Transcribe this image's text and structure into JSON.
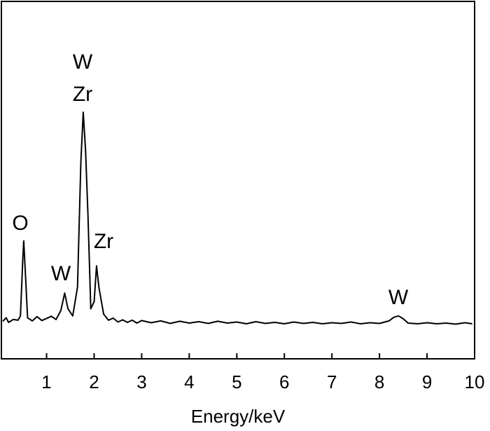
{
  "chart_data": {
    "type": "line",
    "x_label": "Energy/keV",
    "xlim": [
      0.05,
      10
    ],
    "xticks": [
      1,
      2,
      3,
      4,
      5,
      6,
      7,
      8,
      9,
      10
    ],
    "ylim": [
      0,
      100
    ],
    "annotations": [
      "W",
      "Zr",
      "O",
      "W",
      "Zr",
      "W"
    ],
    "series": [
      {
        "color": "#000000",
        "x": [
          0.08,
          0.15,
          0.2,
          0.3,
          0.4,
          0.45,
          0.5,
          0.52,
          0.55,
          0.6,
          0.7,
          0.8,
          0.9,
          1.0,
          1.1,
          1.2,
          1.3,
          1.38,
          1.45,
          1.55,
          1.65,
          1.72,
          1.77,
          1.82,
          1.87,
          1.93,
          2.0,
          2.05,
          2.1,
          2.2,
          2.3,
          2.4,
          2.5,
          2.6,
          2.7,
          2.8,
          2.9,
          3.0,
          3.2,
          3.4,
          3.6,
          3.8,
          4.0,
          4.2,
          4.4,
          4.6,
          4.8,
          5.0,
          5.2,
          5.4,
          5.6,
          5.8,
          6.0,
          6.2,
          6.4,
          6.6,
          6.8,
          7.0,
          7.2,
          7.4,
          7.6,
          7.8,
          8.0,
          8.2,
          8.3,
          8.4,
          8.5,
          8.6,
          8.8,
          9.0,
          9.2,
          9.4,
          9.6,
          9.8,
          9.95
        ],
        "values": [
          10.5,
          11.5,
          10.2,
          11.0,
          10.8,
          12.0,
          28,
          33,
          25,
          11.5,
          10.6,
          11.8,
          10.7,
          11.3,
          11.9,
          11.0,
          13.5,
          18.4,
          14.0,
          12.0,
          20,
          55,
          69,
          58,
          40,
          14,
          16,
          26,
          20,
          12.5,
          10.8,
          11.4,
          10.3,
          10.9,
          10.2,
          10.8,
          10.0,
          10.7,
          10.1,
          10.6,
          9.9,
          10.5,
          10.0,
          10.4,
          9.9,
          10.5,
          10.0,
          10.3,
          9.8,
          10.4,
          9.9,
          10.2,
          9.8,
          10.3,
          9.9,
          10.2,
          9.8,
          10.1,
          9.9,
          10.3,
          9.8,
          10.1,
          9.9,
          10.6,
          11.6,
          12.0,
          11.2,
          10.0,
          9.8,
          10.1,
          9.8,
          10.0,
          9.7,
          10.1,
          9.8
        ]
      }
    ]
  }
}
